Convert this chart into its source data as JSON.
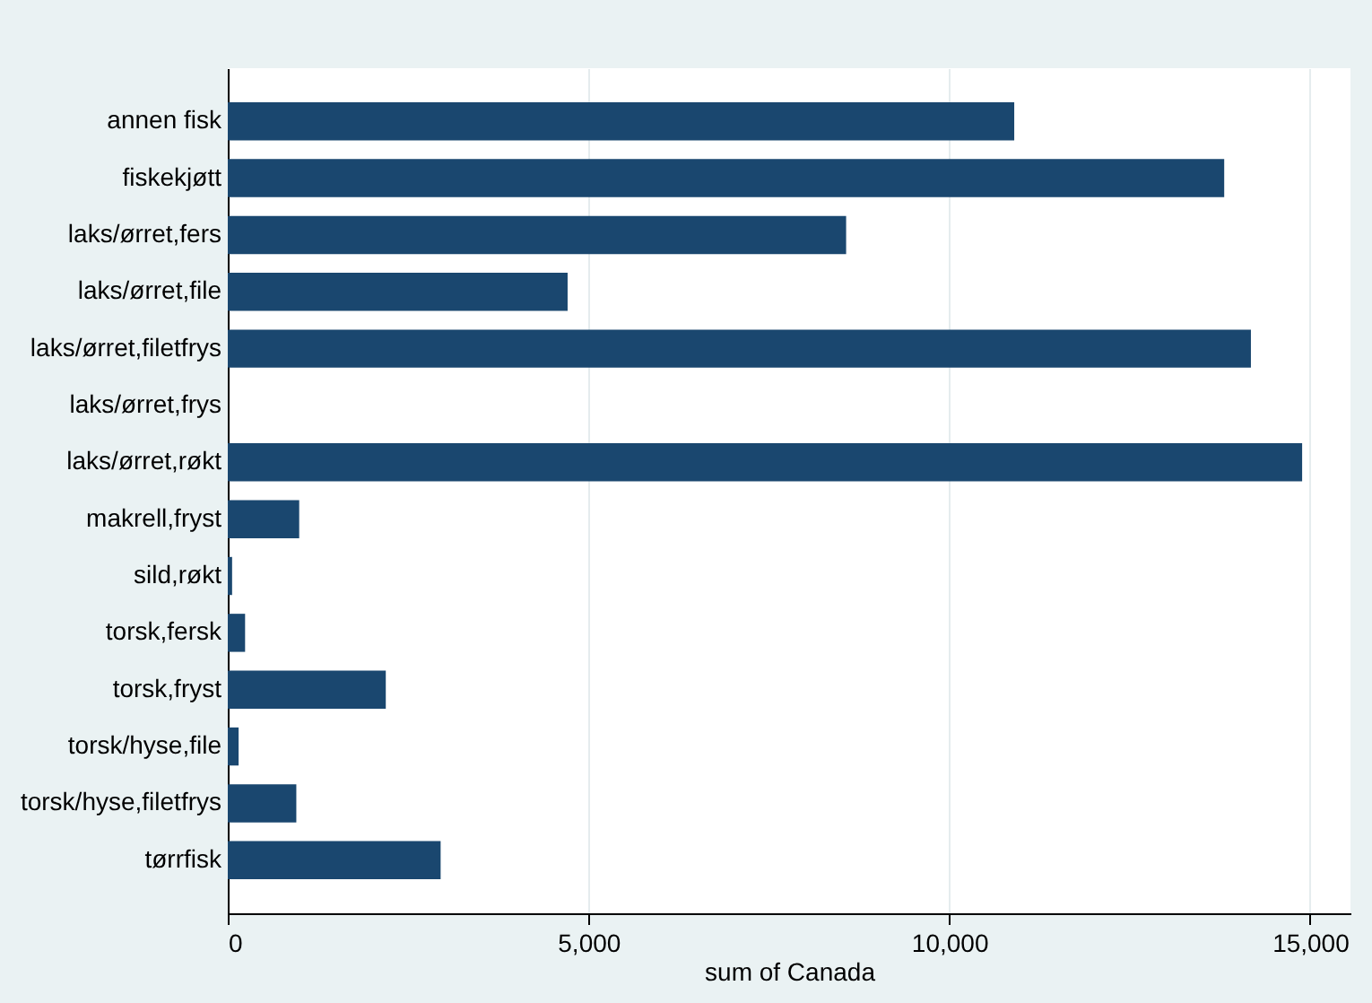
{
  "chart_data": {
    "type": "bar",
    "orientation": "horizontal",
    "categories": [
      "annen fisk",
      "fiskekjøtt",
      "laks/ørret,fers",
      "laks/ørret,file",
      "laks/ørret,filetfrys",
      "laks/ørret,frys",
      "laks/ørret,røkt",
      "makrell,fryst",
      "sild,røkt",
      "torsk,fersk",
      "torsk,fryst",
      "torsk/hyse,file",
      "torsk/hyse,filetfrys",
      "tørrfisk"
    ],
    "values": [
      10900,
      13810,
      8570,
      4710,
      14180,
      0,
      14890,
      990,
      60,
      240,
      2190,
      150,
      950,
      2950
    ],
    "color": "#1a476f",
    "xlabel": "sum of Canada",
    "xlim": [
      0,
      15560
    ],
    "xticks": [
      {
        "value": 0,
        "label": "0"
      },
      {
        "value": 5000,
        "label": "5,000"
      },
      {
        "value": 10000,
        "label": "10,000"
      },
      {
        "value": 15000,
        "label": "15,000"
      }
    ],
    "grid": "x"
  }
}
